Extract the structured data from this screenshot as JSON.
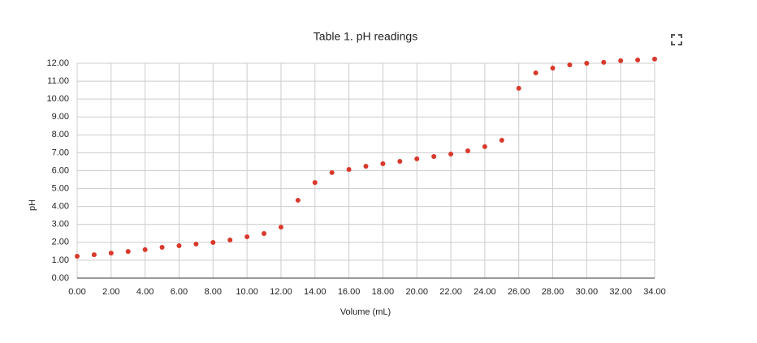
{
  "chart_data": {
    "type": "scatter",
    "title": "Table 1. pH readings",
    "x_label": "Volume (mL)",
    "y_label": "pH",
    "series": [
      {
        "name": "pH",
        "color": "#d8392b",
        "x": [
          0,
          1,
          2,
          3,
          4,
          5,
          6,
          7,
          8,
          9,
          10,
          11,
          12,
          13,
          14,
          15,
          16,
          17,
          18,
          19,
          20,
          21,
          22,
          23,
          24,
          25,
          26,
          27,
          28,
          29,
          30,
          31,
          32,
          33,
          34
        ],
        "values": [
          1.22,
          1.31,
          1.4,
          1.49,
          1.59,
          1.72,
          1.81,
          1.9,
          1.99,
          2.13,
          2.31,
          2.49,
          2.85,
          4.35,
          5.34,
          5.89,
          6.07,
          6.25,
          6.39,
          6.52,
          6.66,
          6.79,
          6.93,
          7.11,
          7.34,
          7.7,
          10.6,
          11.46,
          11.73,
          11.91,
          12.0,
          12.05,
          12.14,
          12.18,
          12.23
        ]
      }
    ],
    "xlim": [
      0,
      34
    ],
    "ylim": [
      0,
      12
    ],
    "xticks": [
      {
        "value": 0,
        "label": "0.00"
      },
      {
        "value": 2,
        "label": "2.00"
      },
      {
        "value": 4,
        "label": "4.00"
      },
      {
        "value": 6,
        "label": "6.00"
      },
      {
        "value": 8,
        "label": "8.00"
      },
      {
        "value": 10,
        "label": "10.00"
      },
      {
        "value": 12,
        "label": "12.00"
      },
      {
        "value": 14,
        "label": "14.00"
      },
      {
        "value": 16,
        "label": "16.00"
      },
      {
        "value": 18,
        "label": "18.00"
      },
      {
        "value": 20,
        "label": "20.00"
      },
      {
        "value": 22,
        "label": "22.00"
      },
      {
        "value": 24,
        "label": "24.00"
      },
      {
        "value": 26,
        "label": "26.00"
      },
      {
        "value": 28,
        "label": "28.00"
      },
      {
        "value": 30,
        "label": "30.00"
      },
      {
        "value": 32,
        "label": "32.00"
      },
      {
        "value": 34,
        "label": "34.00"
      }
    ],
    "yticks": [
      {
        "value": 0,
        "label": "0.00"
      },
      {
        "value": 1,
        "label": "1.00"
      },
      {
        "value": 2,
        "label": "2.00"
      },
      {
        "value": 3,
        "label": "3.00"
      },
      {
        "value": 4,
        "label": "4.00"
      },
      {
        "value": 5,
        "label": "5.00"
      },
      {
        "value": 6,
        "label": "6.00"
      },
      {
        "value": 7,
        "label": "7.00"
      },
      {
        "value": 8,
        "label": "8.00"
      },
      {
        "value": 9,
        "label": "9.00"
      },
      {
        "value": 10,
        "label": "10.00"
      },
      {
        "value": 11,
        "label": "11.00"
      },
      {
        "value": 12,
        "label": "12.00"
      }
    ],
    "grid": true
  }
}
